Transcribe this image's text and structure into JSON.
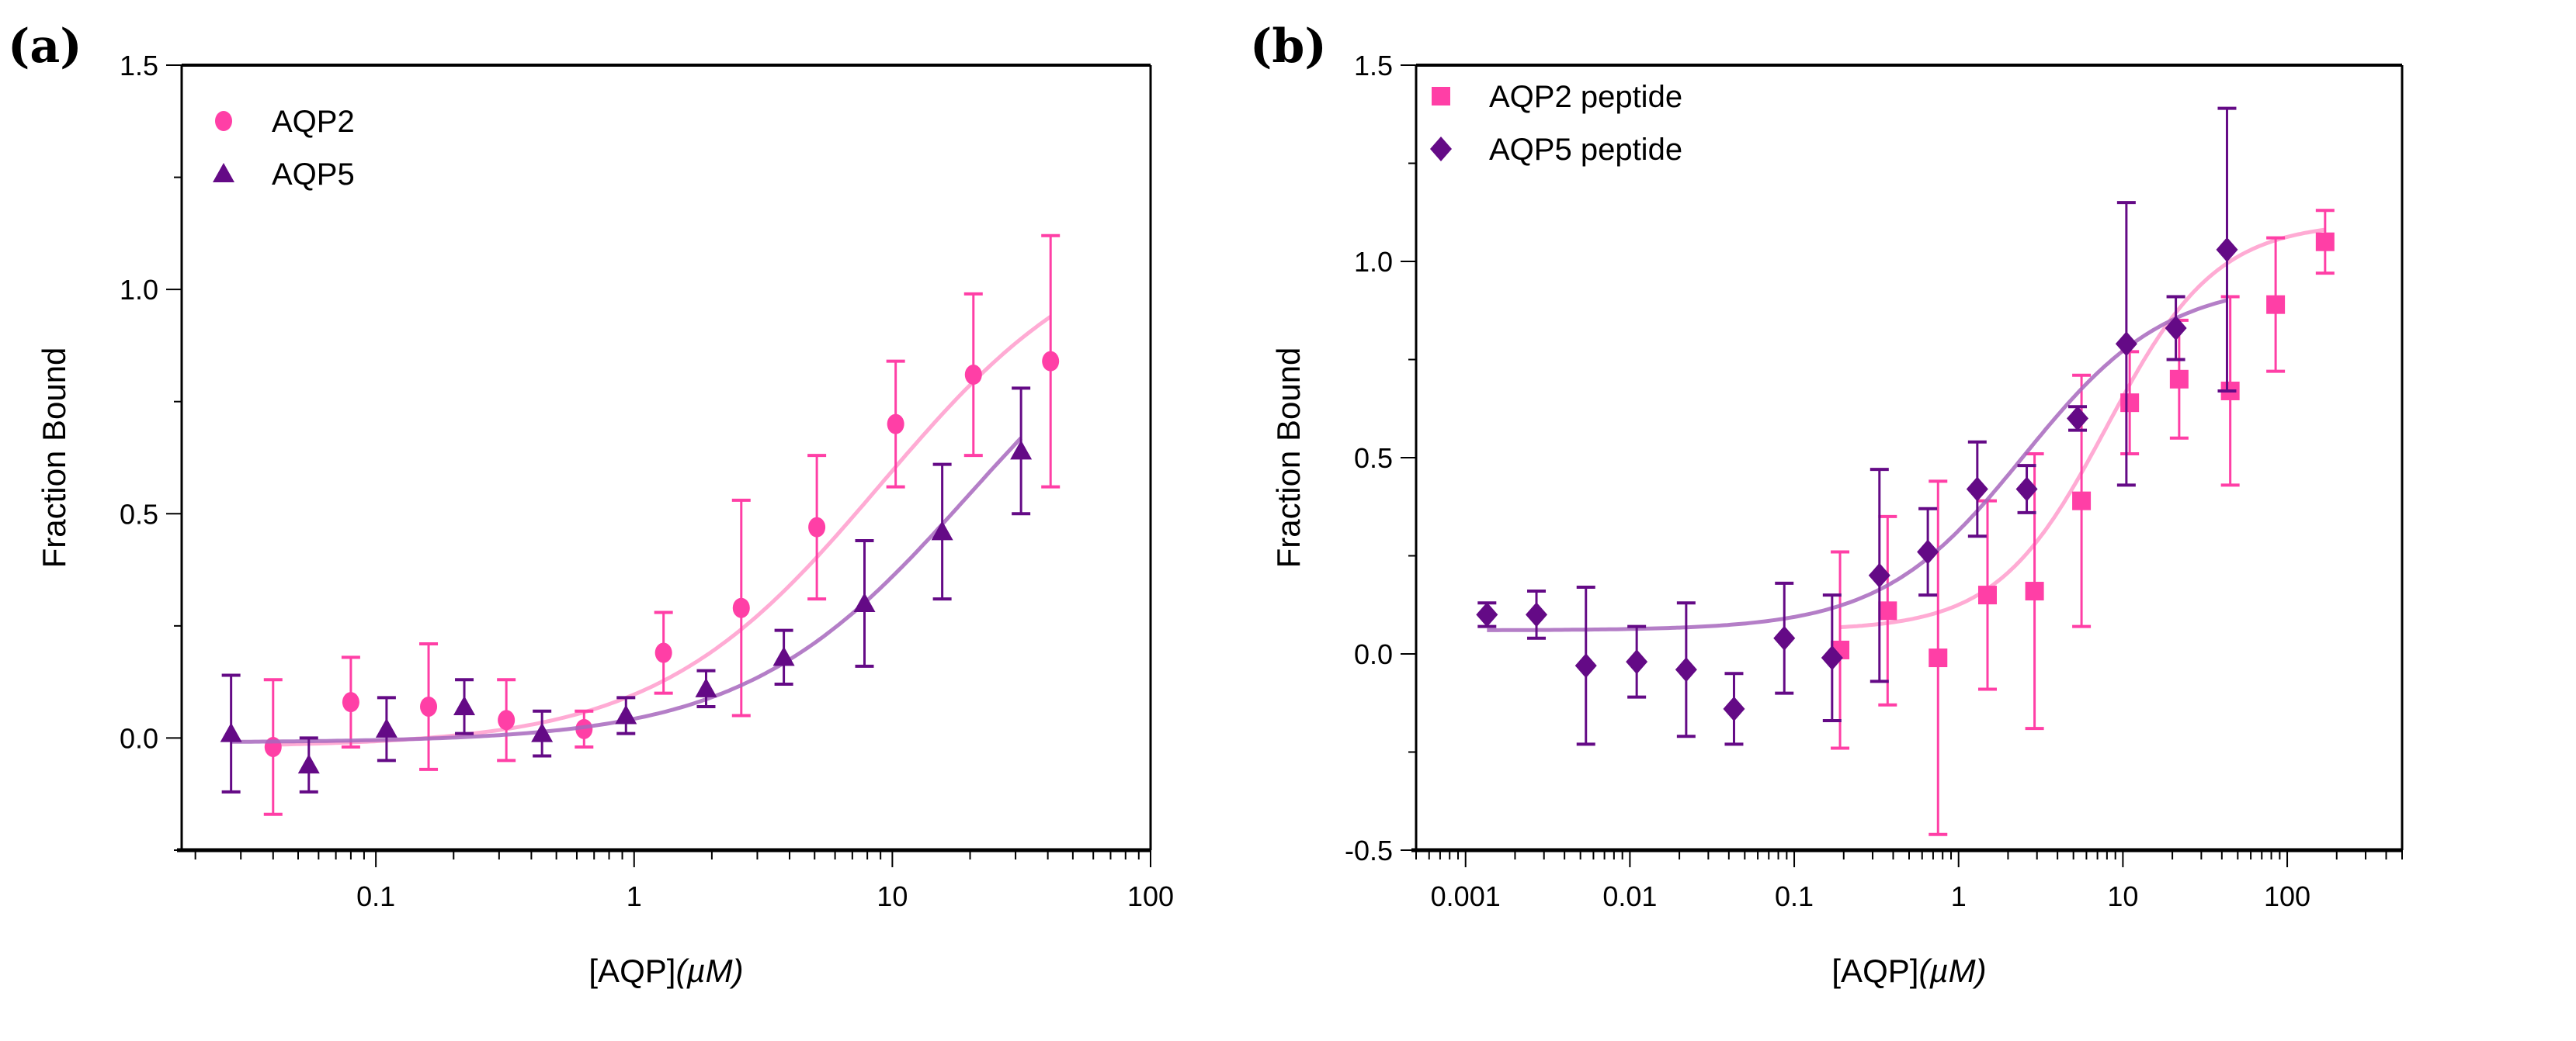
{
  "chart_data": [
    {
      "type": "scatter",
      "panel_label": "(a)",
      "xlabel_main": "[AQP]",
      "xlabel_unit": "(µM)",
      "ylabel": "Fraction Bound",
      "xscale": "log",
      "xlim": [
        0.0177,
        100
      ],
      "ylim": [
        -0.25,
        1.5
      ],
      "xticks": [
        0.1,
        1,
        10,
        100
      ],
      "xtick_labels": [
        "0.1",
        "1",
        "10",
        "100"
      ],
      "yticks": [
        0,
        0.5,
        1.0,
        1.5
      ],
      "ytick_labels": [
        "0.0",
        "0.5",
        "1.0",
        "1.5"
      ],
      "legend_position": "top-left",
      "series": [
        {
          "name": "AQP2",
          "marker": "circle",
          "color": "#ff3fa6",
          "fit_color": "#ff9ccd",
          "x": [
            0.04,
            0.08,
            0.16,
            0.32,
            0.64,
            1.3,
            2.6,
            5.1,
            10.3,
            20.6,
            41
          ],
          "y": [
            -0.02,
            0.08,
            0.07,
            0.04,
            0.02,
            0.19,
            0.29,
            0.47,
            0.7,
            0.81,
            0.84
          ],
          "err": [
            0.15,
            0.1,
            0.14,
            0.09,
            0.04,
            0.09,
            0.24,
            0.16,
            0.14,
            0.18,
            0.28
          ],
          "fit": {
            "bottom": -0.02,
            "top": 1.15,
            "k": 9,
            "hill": 1
          }
        },
        {
          "name": "AQP5",
          "marker": "triangle",
          "color": "#640a86",
          "fit_color": "#a767bd",
          "x": [
            0.0275,
            0.055,
            0.11,
            0.22,
            0.44,
            0.93,
            1.9,
            3.8,
            7.8,
            15.6,
            31.5
          ],
          "y": [
            0.01,
            -0.06,
            0.02,
            0.07,
            0.01,
            0.05,
            0.11,
            0.18,
            0.3,
            0.46,
            0.64
          ],
          "err": [
            0.13,
            0.06,
            0.07,
            0.06,
            0.05,
            0.04,
            0.04,
            0.06,
            0.14,
            0.15,
            0.14
          ],
          "fit": {
            "bottom": -0.01,
            "top": 1.1,
            "k": 20,
            "hill": 1
          }
        }
      ]
    },
    {
      "type": "scatter",
      "panel_label": "(b)",
      "xlabel_main": "[AQP]",
      "xlabel_unit": "(µM)",
      "ylabel": "Fraction Bound",
      "xscale": "log",
      "xlim": [
        0.0005,
        500
      ],
      "ylim": [
        -0.5,
        1.5
      ],
      "xticks": [
        0.001,
        0.01,
        0.1,
        1,
        10,
        100
      ],
      "xtick_labels": [
        "0.001",
        "0.01",
        "0.1",
        "1",
        "10",
        "100"
      ],
      "yticks": [
        -0.5,
        0,
        0.5,
        1.0,
        1.5
      ],
      "ytick_labels": [
        "-0.5",
        "0.0",
        "0.5",
        "1.0",
        "1.5"
      ],
      "legend_position": "top-left",
      "series": [
        {
          "name": "AQP2 peptide",
          "marker": "square",
          "color": "#ff3fa6",
          "fit_color": "#ff9ccd",
          "x": [
            0.19,
            0.37,
            0.75,
            1.5,
            2.9,
            5.6,
            11,
            22,
            45,
            85,
            170
          ],
          "y": [
            0.01,
            0.11,
            -0.01,
            0.15,
            0.16,
            0.39,
            0.64,
            0.7,
            0.67,
            0.89,
            1.05
          ],
          "err": [
            0.25,
            0.24,
            0.45,
            0.24,
            0.35,
            0.32,
            0.13,
            0.15,
            0.24,
            0.17,
            0.08
          ],
          "fit": {
            "bottom": 0.06,
            "top": 1.1,
            "k": 8,
            "hill": 1.3
          }
        },
        {
          "name": "AQP5 peptide",
          "marker": "diamond",
          "color": "#640a86",
          "fit_color": "#a767bd",
          "x": [
            0.00135,
            0.0027,
            0.0054,
            0.011,
            0.022,
            0.043,
            0.087,
            0.17,
            0.33,
            0.65,
            1.3,
            2.6,
            5.3,
            10.5,
            21,
            43
          ],
          "y": [
            0.1,
            0.1,
            -0.03,
            -0.02,
            -0.04,
            -0.14,
            0.04,
            -0.01,
            0.2,
            0.26,
            0.42,
            0.42,
            0.6,
            0.79,
            0.83,
            1.03
          ],
          "err": [
            0.03,
            0.06,
            0.2,
            0.09,
            0.17,
            0.09,
            0.14,
            0.16,
            0.27,
            0.11,
            0.12,
            0.06,
            0.03,
            0.36,
            0.08,
            0.36
          ],
          "fit": {
            "bottom": 0.06,
            "top": 0.95,
            "k": 2.5,
            "hill": 1
          }
        }
      ]
    }
  ]
}
